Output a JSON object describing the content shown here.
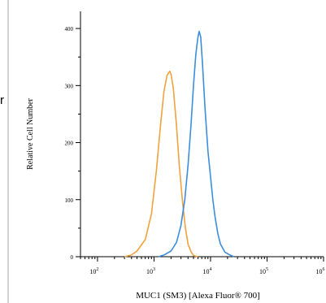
{
  "page": {
    "left_fragment_text": "r"
  },
  "chart_data": {
    "type": "line",
    "title": "",
    "xlabel": "MUC1 (SM3) [Alexa Fluor® 700]",
    "ylabel": "Relative Cell Number",
    "x_scale": "log10",
    "xlim": [
      50,
      1000000
    ],
    "ylim": [
      0,
      430
    ],
    "y_ticks": [
      0,
      100,
      200,
      300,
      400
    ],
    "y_tick_labels": [
      "0",
      "100",
      "200",
      "300",
      "400"
    ],
    "x_ticks": [
      100,
      1000,
      10000,
      100000,
      1000000
    ],
    "x_tick_exponents": [
      "2",
      "3",
      "4",
      "5",
      "6"
    ],
    "grid": false,
    "legend": "none",
    "series": [
      {
        "color": "#F0A23C",
        "x": [
          300,
          400,
          500,
          700,
          900,
          1100,
          1300,
          1500,
          1700,
          1900,
          2000,
          2200,
          2500,
          2800,
          3200,
          3600,
          4000,
          4500,
          5000,
          6000
        ],
        "y": [
          0,
          3,
          10,
          30,
          75,
          150,
          230,
          290,
          318,
          325,
          320,
          295,
          230,
          160,
          95,
          50,
          22,
          9,
          2,
          0
        ]
      },
      {
        "color": "#3C8EDC",
        "x": [
          1200,
          1500,
          2000,
          2500,
          3000,
          3500,
          4000,
          4500,
          5000,
          5500,
          6000,
          6300,
          6700,
          7200,
          8000,
          9000,
          10000,
          11000,
          12000,
          13500,
          15000,
          18000,
          22000,
          26000
        ],
        "y": [
          0,
          3,
          10,
          25,
          55,
          100,
          160,
          230,
          300,
          355,
          385,
          395,
          385,
          340,
          260,
          185,
          140,
          100,
          70,
          40,
          22,
          8,
          3,
          0
        ]
      }
    ]
  }
}
